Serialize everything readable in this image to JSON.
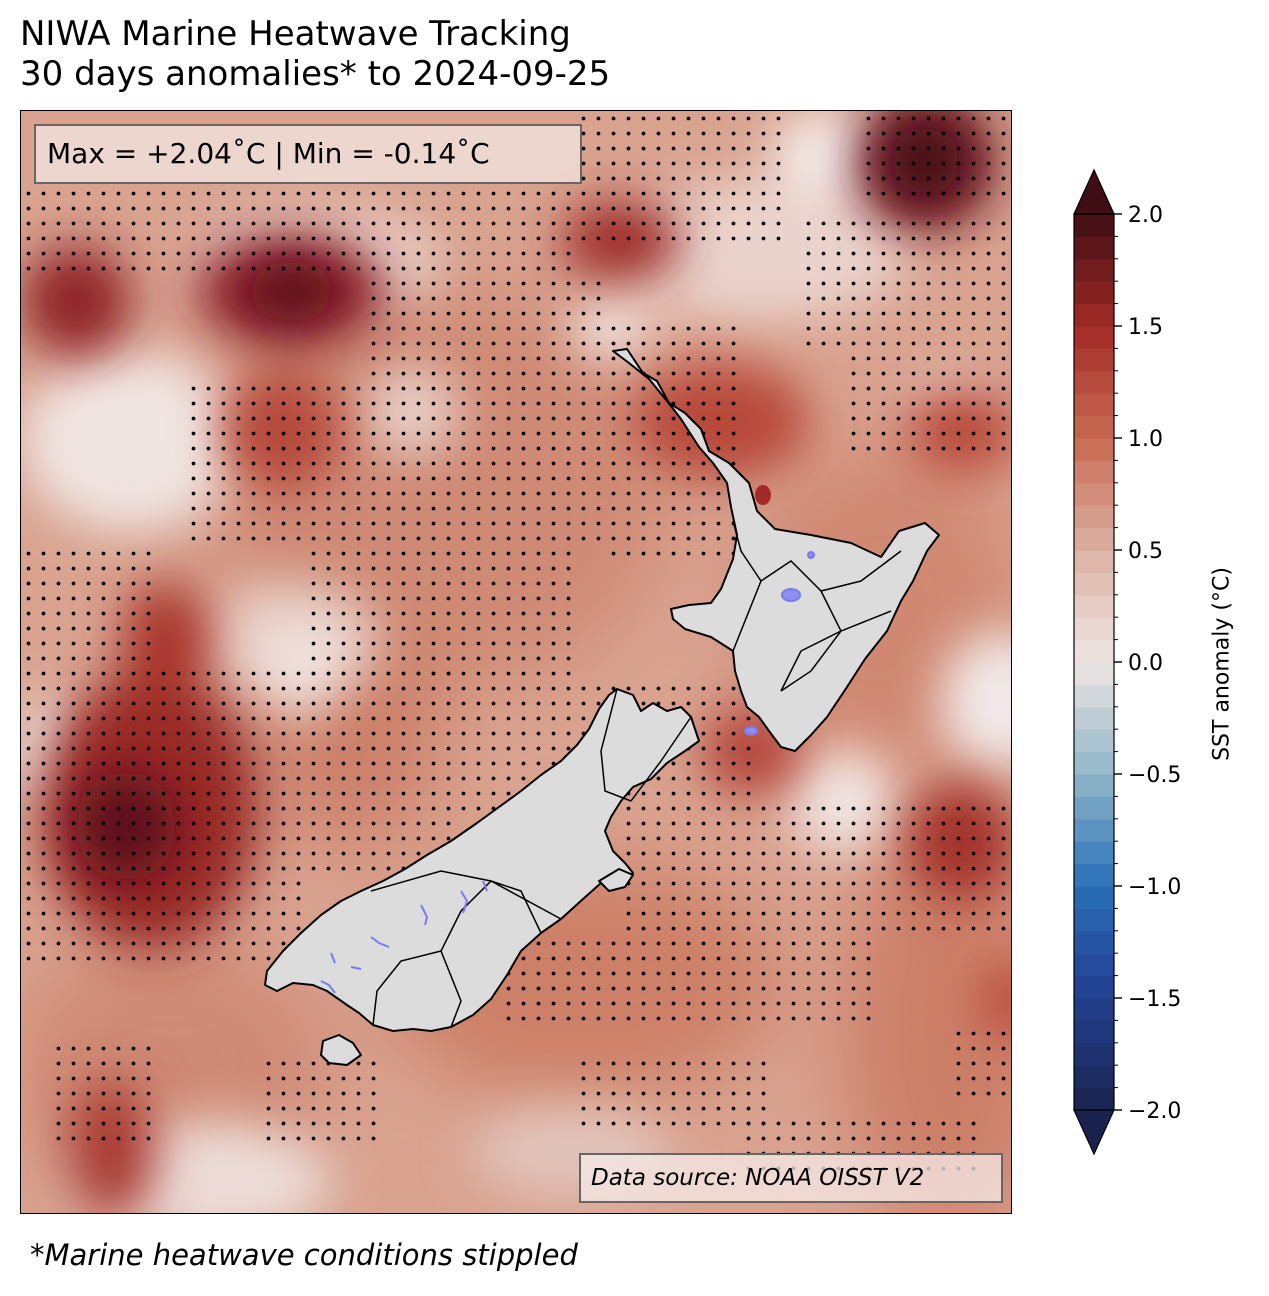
{
  "figure": {
    "title_line1": "NIWA Marine Heatwave Tracking",
    "title_line2": "30 days anomalies* to 2024-09-25",
    "stats_text": "Max = +2.04˚C | Min = -0.14˚C",
    "source_text": "Data source: NOAA OISST V2",
    "footnote": "*Marine heatwave conditions stippled"
  },
  "colorbar": {
    "label": "SST anomaly (°C)",
    "min": -2.0,
    "max": 2.0,
    "ticks": [
      "−2.0",
      "−1.5",
      "−1.0",
      "−0.5",
      "0.0",
      "0.5",
      "1.0",
      "1.5",
      "2.0"
    ],
    "tick_values": [
      -2.0,
      -1.5,
      -1.0,
      -0.5,
      0.0,
      0.5,
      1.0,
      1.5,
      2.0
    ],
    "colors": {
      "neg_max": "#1a2350",
      "neg_mid": "#2a6fb8",
      "neg_low": "#8fb6c8",
      "zero": "#efe6e4",
      "pos_low": "#dcb1a4",
      "pos_mid": "#c96a52",
      "pos_high": "#a32a26",
      "pos_max": "#3e0e14"
    }
  },
  "map": {
    "land_color": "#dcdcdc",
    "lake_color": "#8f8ff2",
    "stipple_color": "#000000",
    "background_anomaly_color": "#d9a390"
  }
}
